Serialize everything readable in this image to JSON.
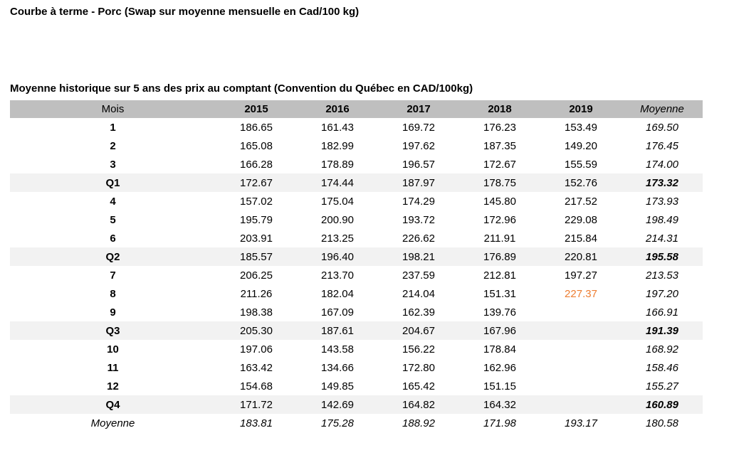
{
  "page": {
    "title": "Courbe à terme - Porc (Swap sur moyenne mensuelle en Cad/100 kg)",
    "subtitle": "Moyenne historique sur 5 ans des prix au comptant (Convention du Québec en CAD/100kg)"
  },
  "colors": {
    "header_bg": "#BFBFBF",
    "quarter_row_bg": "#F2F2F2",
    "highlight_value": "#ED7D31",
    "text": "#000000"
  },
  "table": {
    "columns": [
      "Mois",
      "2015",
      "2016",
      "2017",
      "2018",
      "2019",
      "Moyenne"
    ],
    "rows": [
      {
        "label": "1",
        "type": "month",
        "values": [
          "186.65",
          "161.43",
          "169.72",
          "176.23",
          "153.49",
          "169.50"
        ]
      },
      {
        "label": "2",
        "type": "month",
        "values": [
          "165.08",
          "182.99",
          "197.62",
          "187.35",
          "149.20",
          "176.45"
        ]
      },
      {
        "label": "3",
        "type": "month",
        "values": [
          "166.28",
          "178.89",
          "196.57",
          "172.67",
          "155.59",
          "174.00"
        ]
      },
      {
        "label": "Q1",
        "type": "quarter",
        "values": [
          "172.67",
          "174.44",
          "187.97",
          "178.75",
          "152.76",
          "173.32"
        ]
      },
      {
        "label": "4",
        "type": "month",
        "values": [
          "157.02",
          "175.04",
          "174.29",
          "145.80",
          "217.52",
          "173.93"
        ]
      },
      {
        "label": "5",
        "type": "month",
        "values": [
          "195.79",
          "200.90",
          "193.72",
          "172.96",
          "229.08",
          "198.49"
        ]
      },
      {
        "label": "6",
        "type": "month",
        "values": [
          "203.91",
          "213.25",
          "226.62",
          "211.91",
          "215.84",
          "214.31"
        ]
      },
      {
        "label": "Q2",
        "type": "quarter",
        "values": [
          "185.57",
          "196.40",
          "198.21",
          "176.89",
          "220.81",
          "195.58"
        ]
      },
      {
        "label": "7",
        "type": "month",
        "values": [
          "206.25",
          "213.70",
          "237.59",
          "212.81",
          "197.27",
          "213.53"
        ]
      },
      {
        "label": "8",
        "type": "month",
        "values": [
          "211.26",
          "182.04",
          "214.04",
          "151.31",
          "227.37",
          "197.20"
        ],
        "highlights": {
          "4": "#ED7D31"
        }
      },
      {
        "label": "9",
        "type": "month",
        "values": [
          "198.38",
          "167.09",
          "162.39",
          "139.76",
          "",
          "166.91"
        ]
      },
      {
        "label": "Q3",
        "type": "quarter",
        "values": [
          "205.30",
          "187.61",
          "204.67",
          "167.96",
          "",
          "191.39"
        ]
      },
      {
        "label": "10",
        "type": "month",
        "values": [
          "197.06",
          "143.58",
          "156.22",
          "178.84",
          "",
          "168.92"
        ]
      },
      {
        "label": "11",
        "type": "month",
        "values": [
          "163.42",
          "134.66",
          "172.80",
          "162.96",
          "",
          "158.46"
        ]
      },
      {
        "label": "12",
        "type": "month",
        "values": [
          "154.68",
          "149.85",
          "165.42",
          "151.15",
          "",
          "155.27"
        ]
      },
      {
        "label": "Q4",
        "type": "quarter",
        "values": [
          "171.72",
          "142.69",
          "164.82",
          "164.32",
          "",
          "160.89"
        ]
      },
      {
        "label": "Moyenne",
        "type": "total",
        "values": [
          "183.81",
          "175.28",
          "188.92",
          "171.98",
          "193.17",
          "180.58"
        ]
      }
    ]
  }
}
